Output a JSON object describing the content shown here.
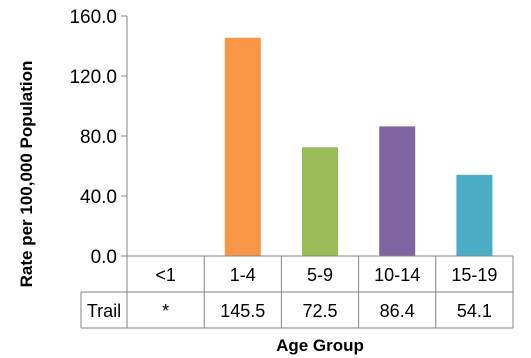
{
  "chart_data": {
    "type": "bar",
    "title": "",
    "xlabel": "Age Group",
    "ylabel": "Rate per 100,000 Population",
    "categories": [
      "<1",
      "1-4",
      "5-9",
      "10-14",
      "15-19"
    ],
    "series": [
      {
        "name": "Trail",
        "values": [
          null,
          145.5,
          72.5,
          86.4,
          54.1
        ],
        "value_labels": [
          "*",
          "145.5",
          "72.5",
          "86.4",
          "54.1"
        ]
      }
    ],
    "bar_colors": [
      "#f79646",
      "#f79646",
      "#9bbb59",
      "#8064a2",
      "#4bacc6"
    ],
    "ylim": [
      0,
      160
    ],
    "yticks": [
      "0.0",
      "40.0",
      "80.0",
      "120.0",
      "160.0"
    ],
    "ytick_values": [
      0,
      40,
      80,
      120,
      160
    ],
    "grid": false,
    "legend": "data table below chart",
    "axis_color": "#868686"
  }
}
